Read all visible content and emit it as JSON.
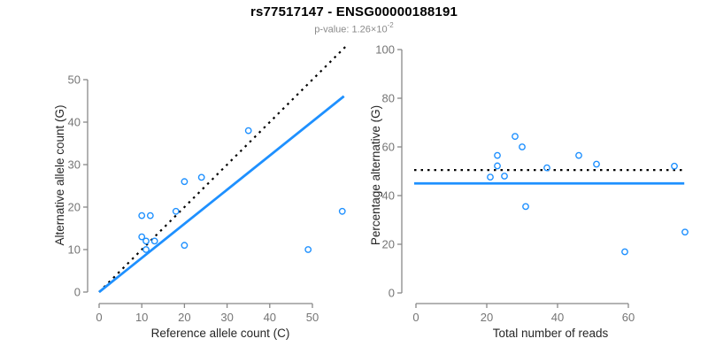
{
  "header": {
    "title": "rs77517147 - ENSG00000188191",
    "p_label": "p-value: 1.26×10",
    "p_exponent": "-2"
  },
  "colors": {
    "accent_blue": "#1E90FF",
    "reference_black": "#000000",
    "axis_gray": "#888888",
    "tick_label_gray": "#757575",
    "axis_label_color": "#262626",
    "title_color": "#000000",
    "subtitle_gray": "#8a8a8a"
  },
  "chart_data": [
    {
      "type": "scatter",
      "name": "allele-counts-scatter",
      "xlabel": "Reference allele count (C)",
      "ylabel": "Alternative allele count (G)",
      "xlim": [
        0,
        57.5
      ],
      "ylim": [
        0,
        57.5
      ],
      "xticks": [
        0,
        10,
        20,
        30,
        40,
        50
      ],
      "yticks": [
        0,
        10,
        20,
        30,
        40,
        50
      ],
      "grid": false,
      "point_color": "#1E90FF",
      "points": [
        [
          10,
          18
        ],
        [
          12,
          18
        ],
        [
          18,
          19
        ],
        [
          20,
          26
        ],
        [
          24,
          27
        ],
        [
          35,
          38
        ],
        [
          10,
          13
        ],
        [
          11,
          12
        ],
        [
          13,
          12
        ],
        [
          11,
          10
        ],
        [
          20,
          11
        ],
        [
          57,
          19
        ],
        [
          49,
          10
        ]
      ],
      "lines": [
        {
          "name": "identity-line",
          "style": "dotted",
          "color": "#000000",
          "x1": 0,
          "y1": 0,
          "x2": 57.7,
          "y2": 57.7
        },
        {
          "name": "fitted-ratio-line",
          "style": "solid",
          "color": "#1E90FF",
          "x1": 0,
          "y1": 0,
          "x2": 57.4,
          "y2": 46.1
        }
      ]
    },
    {
      "type": "scatter",
      "name": "percentage-vs-reads-scatter",
      "xlabel": "Total number of reads",
      "ylabel": "Percentage alternative (G)",
      "xlim": [
        0,
        76
      ],
      "ylim": [
        0,
        100
      ],
      "xticks": [
        0,
        20,
        40,
        60
      ],
      "yticks": [
        0,
        20,
        40,
        60,
        80,
        100
      ],
      "grid": false,
      "point_color": "#1E90FF",
      "points": [
        [
          28,
          64.3
        ],
        [
          30,
          60
        ],
        [
          37,
          51.4
        ],
        [
          46,
          56.5
        ],
        [
          51,
          52.9
        ],
        [
          73,
          52.1
        ],
        [
          23,
          56.5
        ],
        [
          23,
          52.2
        ],
        [
          25,
          48
        ],
        [
          21,
          47.6
        ],
        [
          31,
          35.5
        ],
        [
          76,
          25
        ],
        [
          59,
          16.9
        ]
      ],
      "lines": [
        {
          "name": "expected-50pct-line",
          "style": "dotted",
          "color": "#000000",
          "x1": -0.5,
          "y1": 50.5,
          "x2": 75.5,
          "y2": 50.5
        },
        {
          "name": "mean-percentage-line",
          "style": "solid",
          "color": "#1E90FF",
          "x1": -0.5,
          "y1": 45,
          "x2": 75.8,
          "y2": 45
        }
      ]
    }
  ]
}
